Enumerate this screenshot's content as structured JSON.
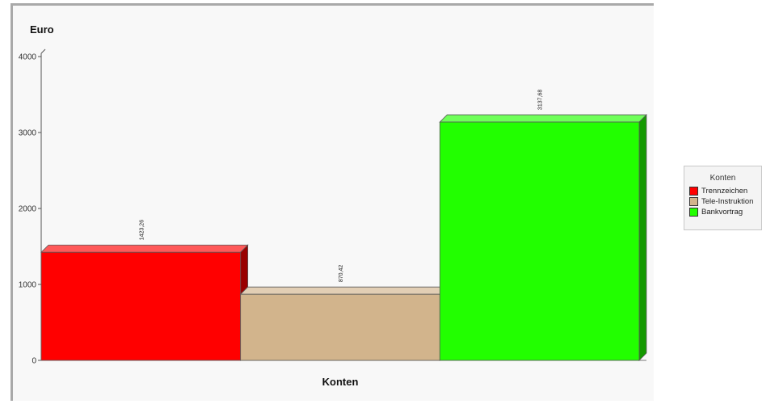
{
  "chart_data": {
    "type": "bar",
    "ylabel": "Euro",
    "xlabel": "Konten",
    "ylim": [
      0,
      4000
    ],
    "yticks": [
      0,
      1000,
      2000,
      3000,
      4000
    ],
    "categories": [
      "Trennzeichen",
      "Tele-Instruktion",
      "Bankvortrag"
    ],
    "values": [
      1423.26,
      870.42,
      3137.68
    ],
    "data_labels": [
      "1423,26",
      "870,42",
      "3137,68"
    ],
    "colors": [
      "#ff0000",
      "#d2b48c",
      "#22ff00"
    ],
    "legend": {
      "title": "Konten",
      "placement": "right",
      "entries": [
        "Trennzeichen",
        "Tele-Instruktion",
        "Bankvortrag"
      ]
    },
    "grid": false,
    "style": "3d"
  }
}
